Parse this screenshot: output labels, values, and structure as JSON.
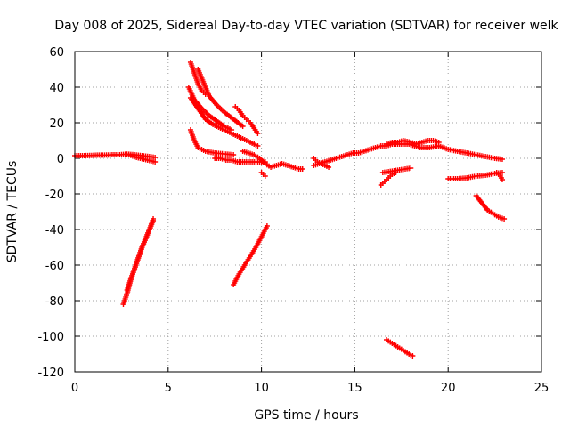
{
  "chart_data": {
    "type": "scatter",
    "title": "Day 008 of 2025, Sidereal Day-to-day VTEC variation (SDTVAR) for receiver welk",
    "xlabel": "GPS time / hours",
    "ylabel": "SDTVAR / TECUs",
    "xlim": [
      0,
      25
    ],
    "ylim": [
      -120,
      60
    ],
    "xticks": [
      0,
      5,
      10,
      15,
      20,
      25
    ],
    "xtick_labels": [
      "0",
      "5",
      "10",
      "15",
      "20",
      "25"
    ],
    "yticks": [
      -120,
      -100,
      -80,
      -60,
      -40,
      -20,
      0,
      20,
      40,
      60
    ],
    "ytick_labels": [
      "-120",
      "-100",
      "-80",
      "-60",
      "-40",
      "-20",
      "0",
      "20",
      "40",
      "60"
    ],
    "grid": true,
    "marker": "+",
    "color": "#ff0000",
    "series": [
      {
        "name": "seg1",
        "x": [
          0.0,
          0.4,
          0.8,
          1.2,
          1.6,
          2.0,
          2.4,
          2.8,
          3.2,
          3.6,
          4.0,
          4.3
        ],
        "y": [
          1.5,
          1.5,
          1.6,
          1.8,
          1.8,
          2.0,
          2.0,
          2.4,
          2.0,
          1.5,
          1.0,
          0.5
        ]
      },
      {
        "name": "seg2",
        "x": [
          2.9,
          3.3,
          3.7,
          4.1,
          4.3
        ],
        "y": [
          2.0,
          0.5,
          -0.5,
          -1.5,
          -2.0
        ]
      },
      {
        "name": "seg3",
        "x": [
          2.6,
          2.8,
          3.0,
          3.2,
          3.4,
          3.6,
          3.8,
          4.0,
          4.2
        ],
        "y": [
          -82,
          -76,
          -68,
          -62,
          -56,
          -50,
          -45,
          -40,
          -34
        ]
      },
      {
        "name": "seg4",
        "x": [
          2.8,
          3.0,
          3.2,
          3.4,
          3.6,
          3.8,
          4.0,
          4.2
        ],
        "y": [
          -74,
          -68,
          -62,
          -56,
          -50,
          -45,
          -40,
          -35
        ]
      },
      {
        "name": "seg5",
        "x": [
          6.2,
          6.4,
          6.6,
          6.8,
          7.0
        ],
        "y": [
          54,
          48,
          42,
          38,
          36
        ]
      },
      {
        "name": "seg6",
        "x": [
          6.6,
          6.8,
          7.0,
          7.2,
          7.6,
          8.0,
          8.5,
          9.0
        ],
        "y": [
          50,
          45,
          40,
          35,
          30,
          26,
          22,
          18
        ]
      },
      {
        "name": "seg7",
        "x": [
          6.1,
          6.4,
          6.8,
          7.2,
          7.6,
          8.0,
          8.4
        ],
        "y": [
          40,
          33,
          28,
          24,
          21,
          18,
          16
        ]
      },
      {
        "name": "seg8",
        "x": [
          6.2,
          6.6,
          7.0,
          7.4,
          7.8,
          8.2,
          8.6,
          9.0,
          9.4,
          9.8
        ],
        "y": [
          34,
          28,
          22,
          19,
          17,
          15,
          13,
          11,
          9,
          7
        ]
      },
      {
        "name": "seg9",
        "x": [
          8.6,
          8.8,
          9.0,
          9.2,
          9.4,
          9.6,
          9.8
        ],
        "y": [
          29,
          27,
          24,
          22,
          20,
          17,
          14
        ]
      },
      {
        "name": "seg10",
        "x": [
          6.2,
          6.4,
          6.6,
          7.0,
          7.5,
          8.0,
          8.5
        ],
        "y": [
          16,
          10,
          6,
          4,
          3,
          2.5,
          2
        ]
      },
      {
        "name": "seg11",
        "x": [
          7.5,
          7.8,
          8.1,
          8.4,
          8.7,
          9.0,
          9.3,
          9.6,
          9.9,
          10.2
        ],
        "y": [
          0,
          0,
          -1,
          -1,
          -2,
          -2,
          -2,
          -2,
          -2,
          -2
        ]
      },
      {
        "name": "seg12",
        "x": [
          9.0,
          9.3,
          9.6,
          9.9,
          10.2,
          10.5,
          10.8,
          11.1,
          11.4,
          11.7,
          12.0,
          12.2
        ],
        "y": [
          4,
          3,
          2,
          0,
          -3,
          -5,
          -4,
          -3,
          -4,
          -5,
          -6,
          -6
        ]
      },
      {
        "name": "seg13",
        "x": [
          10.0,
          10.1,
          10.2
        ],
        "y": [
          -8,
          -9,
          -10
        ]
      },
      {
        "name": "seg14",
        "x": [
          8.5,
          8.8,
          9.1,
          9.4,
          9.7,
          10.0,
          10.3
        ],
        "y": [
          -71,
          -65,
          -60,
          -55,
          -50,
          -44,
          -38
        ]
      },
      {
        "name": "seg15",
        "x": [
          12.8,
          13.1,
          13.4,
          13.7,
          14.0,
          14.3,
          14.6,
          14.9,
          15.2,
          15.5,
          15.8,
          16.1,
          16.4,
          16.7,
          17.0,
          17.3,
          17.6,
          17.9,
          18.2
        ],
        "y": [
          -4,
          -3,
          -2,
          -1,
          0,
          1,
          2,
          3,
          3,
          4,
          5,
          6,
          7,
          7,
          8,
          8,
          8,
          8,
          7
        ]
      },
      {
        "name": "seg16",
        "x": [
          12.8,
          13.0,
          13.2,
          13.4,
          13.6
        ],
        "y": [
          0,
          -2,
          -3,
          -4,
          -5
        ]
      },
      {
        "name": "seg17",
        "x": [
          16.7,
          17.0,
          17.3,
          17.6,
          18.0,
          18.3,
          18.6,
          18.9,
          19.2,
          19.5
        ],
        "y": [
          8,
          9,
          9,
          10,
          9,
          8,
          9,
          10,
          10,
          9
        ]
      },
      {
        "name": "seg18",
        "x": [
          18.0,
          18.5,
          19.0,
          19.5,
          20.0,
          20.5,
          21.0,
          21.5,
          22.0,
          22.5,
          22.9
        ],
        "y": [
          8,
          6,
          6,
          7,
          5,
          4,
          3,
          2,
          1,
          0,
          -0.5
        ]
      },
      {
        "name": "seg19",
        "x": [
          16.4,
          16.6,
          16.8,
          17.0,
          17.2
        ],
        "y": [
          -15,
          -13,
          -11,
          -9,
          -8
        ]
      },
      {
        "name": "seg20",
        "x": [
          16.5,
          16.8,
          17.1,
          17.4,
          17.7,
          18.0
        ],
        "y": [
          -8,
          -7.5,
          -7,
          -6.5,
          -6,
          -5.5
        ]
      },
      {
        "name": "seg21",
        "x": [
          20.0,
          20.5,
          21.0,
          21.5,
          22.0,
          22.5,
          22.9
        ],
        "y": [
          -11.5,
          -11.5,
          -11,
          -10,
          -9.5,
          -8.5,
          -8
        ]
      },
      {
        "name": "seg22",
        "x": [
          22.6,
          22.8,
          22.9
        ],
        "y": [
          -8,
          -10,
          -12
        ]
      },
      {
        "name": "seg23",
        "x": [
          21.5,
          21.8,
          22.1,
          22.4,
          22.7,
          23.0
        ],
        "y": [
          -21,
          -25,
          -29,
          -31,
          -33,
          -34
        ]
      },
      {
        "name": "seg24",
        "x": [
          16.7,
          17.0,
          17.3,
          17.6,
          17.9,
          18.1
        ],
        "y": [
          -102,
          -104,
          -106,
          -108,
          -110,
          -111
        ]
      }
    ]
  }
}
